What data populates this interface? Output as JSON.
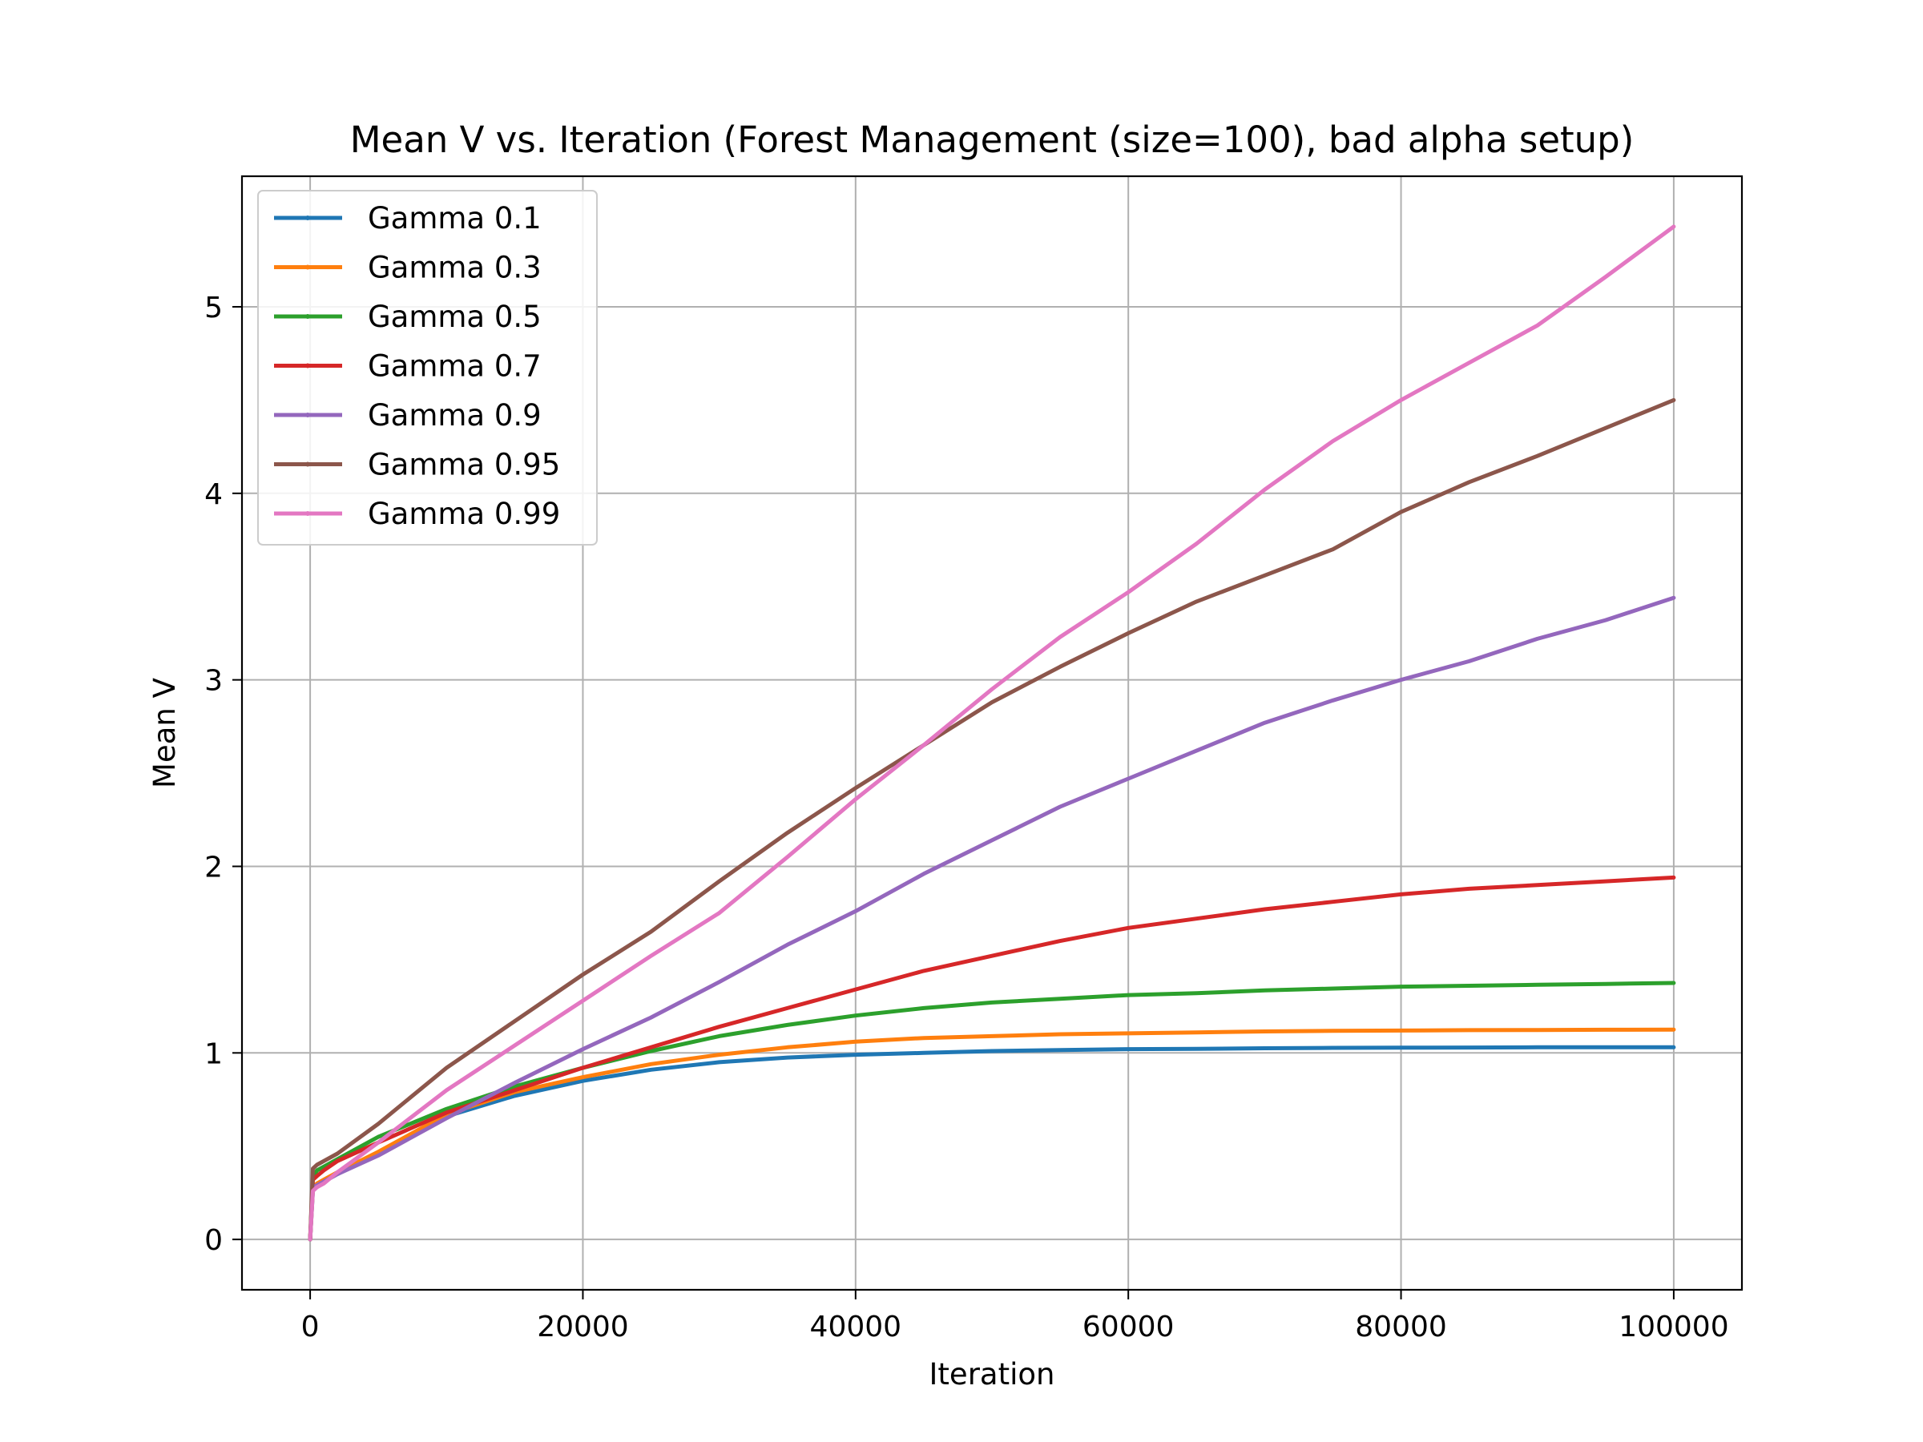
{
  "chart_data": {
    "type": "line",
    "title": "Mean V vs. Iteration (Forest Management (size=100), bad alpha setup)",
    "xlabel": "Iteration",
    "ylabel": "Mean V",
    "xlim": [
      -5000,
      105000
    ],
    "ylim": [
      -0.27,
      5.7
    ],
    "xticks": [
      0,
      20000,
      40000,
      60000,
      80000,
      100000
    ],
    "yticks": [
      0,
      1,
      2,
      3,
      4,
      5
    ],
    "grid": true,
    "legend_position": "top-left",
    "x": [
      0,
      200,
      500,
      1000,
      2000,
      5000,
      10000,
      15000,
      20000,
      25000,
      30000,
      35000,
      40000,
      45000,
      50000,
      55000,
      60000,
      65000,
      70000,
      75000,
      80000,
      85000,
      90000,
      95000,
      100000
    ],
    "series": [
      {
        "name": "Gamma 0.1",
        "color": "#1f77b4",
        "values": [
          0,
          0.26,
          0.29,
          0.31,
          0.35,
          0.46,
          0.66,
          0.77,
          0.85,
          0.91,
          0.95,
          0.975,
          0.99,
          1.0,
          1.01,
          1.015,
          1.02,
          1.022,
          1.025,
          1.027,
          1.028,
          1.029,
          1.03,
          1.03,
          1.03
        ]
      },
      {
        "name": "Gamma 0.3",
        "color": "#ff7f0e",
        "values": [
          0,
          0.27,
          0.3,
          0.32,
          0.36,
          0.47,
          0.67,
          0.79,
          0.87,
          0.94,
          0.99,
          1.03,
          1.06,
          1.08,
          1.09,
          1.1,
          1.105,
          1.11,
          1.115,
          1.118,
          1.12,
          1.122,
          1.123,
          1.124,
          1.125
        ]
      },
      {
        "name": "Gamma 0.5",
        "color": "#2ca02c",
        "values": [
          0,
          0.33,
          0.37,
          0.39,
          0.43,
          0.55,
          0.7,
          0.82,
          0.92,
          1.01,
          1.09,
          1.15,
          1.2,
          1.24,
          1.27,
          1.29,
          1.31,
          1.32,
          1.335,
          1.345,
          1.355,
          1.36,
          1.365,
          1.37,
          1.375
        ]
      },
      {
        "name": "Gamma 0.7",
        "color": "#d62728",
        "values": [
          0,
          0.32,
          0.34,
          0.37,
          0.42,
          0.52,
          0.68,
          0.8,
          0.92,
          1.03,
          1.14,
          1.24,
          1.34,
          1.44,
          1.52,
          1.6,
          1.67,
          1.72,
          1.77,
          1.81,
          1.85,
          1.88,
          1.9,
          1.92,
          1.94
        ]
      },
      {
        "name": "Gamma 0.9",
        "color": "#9467bd",
        "values": [
          0,
          0.28,
          0.29,
          0.31,
          0.35,
          0.45,
          0.65,
          0.84,
          1.02,
          1.19,
          1.38,
          1.58,
          1.76,
          1.96,
          2.14,
          2.32,
          2.47,
          2.62,
          2.77,
          2.89,
          3.0,
          3.1,
          3.22,
          3.32,
          3.44
        ]
      },
      {
        "name": "Gamma 0.95",
        "color": "#8c564b",
        "values": [
          0,
          0.38,
          0.4,
          0.42,
          0.46,
          0.62,
          0.92,
          1.17,
          1.42,
          1.65,
          1.92,
          2.18,
          2.42,
          2.65,
          2.88,
          3.07,
          3.25,
          3.42,
          3.56,
          3.7,
          3.9,
          4.06,
          4.2,
          4.35,
          4.5
        ]
      },
      {
        "name": "Gamma 0.99",
        "color": "#e377c2",
        "values": [
          0,
          0.26,
          0.28,
          0.3,
          0.36,
          0.52,
          0.8,
          1.04,
          1.28,
          1.52,
          1.75,
          2.05,
          2.36,
          2.65,
          2.95,
          3.23,
          3.47,
          3.73,
          4.02,
          4.28,
          4.5,
          4.7,
          4.9,
          5.16,
          5.43
        ]
      }
    ]
  }
}
